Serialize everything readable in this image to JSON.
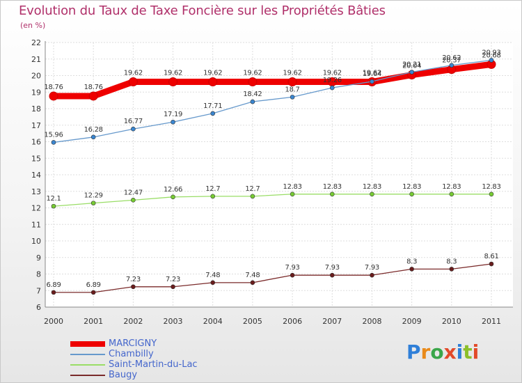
{
  "title": "Evolution du Taux de Taxe Foncière sur les Propriétés Bâties",
  "unit_label": "(en %)",
  "brand": {
    "text": "Proxiti",
    "letters": [
      "P",
      "r",
      "o",
      "x",
      "i",
      "t",
      "i"
    ],
    "letter_colors": [
      "#2f7fd8",
      "#e98a1a",
      "#3aa64a",
      "#e24a2a",
      "#2f7fd8",
      "#8cbf2a",
      "#e24a2a"
    ]
  },
  "chart_data": {
    "type": "line",
    "title": "Evolution du Taux de Taxe Foncière sur les Propriétés Bâties",
    "ylabel": "(en %)",
    "xlabel": "",
    "ylim": [
      6,
      22
    ],
    "yticks": [
      "6",
      "7",
      "8",
      "9",
      "10",
      "11",
      "12",
      "13",
      "14",
      "15",
      "16",
      "17",
      "18",
      "19",
      "20",
      "21",
      "22"
    ],
    "categories": [
      "2000",
      "2001",
      "2002",
      "2003",
      "2004",
      "2005",
      "2006",
      "2007",
      "2008",
      "2009",
      "2010",
      "2011"
    ],
    "grid": true,
    "legend_position": "bottom-left",
    "series": [
      {
        "name": "MARCIGNY",
        "color": "#ee0000",
        "marker_color": "#ee0000",
        "width": "thick",
        "values": [
          18.76,
          18.76,
          19.62,
          19.62,
          19.62,
          19.62,
          19.62,
          19.62,
          19.62,
          20.04,
          20.37,
          20.68
        ],
        "labels": [
          "18.76",
          "18.76",
          "19.62",
          "19.62",
          "19.62",
          "19.62",
          "19.62",
          "19.62",
          "19.62",
          "20.04",
          "20.37",
          "20.68"
        ]
      },
      {
        "name": "Chambilly",
        "color": "#6699cc",
        "marker_color": "#3a86d0",
        "width": "thin",
        "values": [
          15.96,
          16.28,
          16.77,
          17.19,
          17.71,
          18.42,
          18.7,
          19.26,
          19.64,
          20.21,
          20.62,
          20.93
        ],
        "labels": [
          "15.96",
          "16.28",
          "16.77",
          "17.19",
          "17.71",
          "18.42",
          "18.7",
          "19.26",
          "19.64",
          "20.21",
          "20.62",
          "20.93"
        ]
      },
      {
        "name": "Saint-Martin-du-Lac",
        "color": "#99dd66",
        "marker_color": "#77cc33",
        "width": "thin",
        "values": [
          12.1,
          12.29,
          12.47,
          12.66,
          12.7,
          12.7,
          12.83,
          12.83,
          12.83,
          12.83,
          12.83,
          12.83
        ],
        "labels": [
          "12.1",
          "12.29",
          "12.47",
          "12.66",
          "12.7",
          "12.7",
          "12.83",
          "12.83",
          "12.83",
          "12.83",
          "12.83",
          "12.83"
        ]
      },
      {
        "name": "Baugy",
        "color": "#7a2a2a",
        "marker_color": "#6a1c1c",
        "width": "thin",
        "values": [
          6.89,
          6.89,
          7.23,
          7.23,
          7.48,
          7.48,
          7.93,
          7.93,
          7.93,
          8.3,
          8.3,
          8.61
        ],
        "labels": [
          "6.89",
          "6.89",
          "7.23",
          "7.23",
          "7.48",
          "7.48",
          "7.93",
          "7.93",
          "7.93",
          "8.3",
          "8.3",
          "8.61"
        ]
      }
    ]
  }
}
